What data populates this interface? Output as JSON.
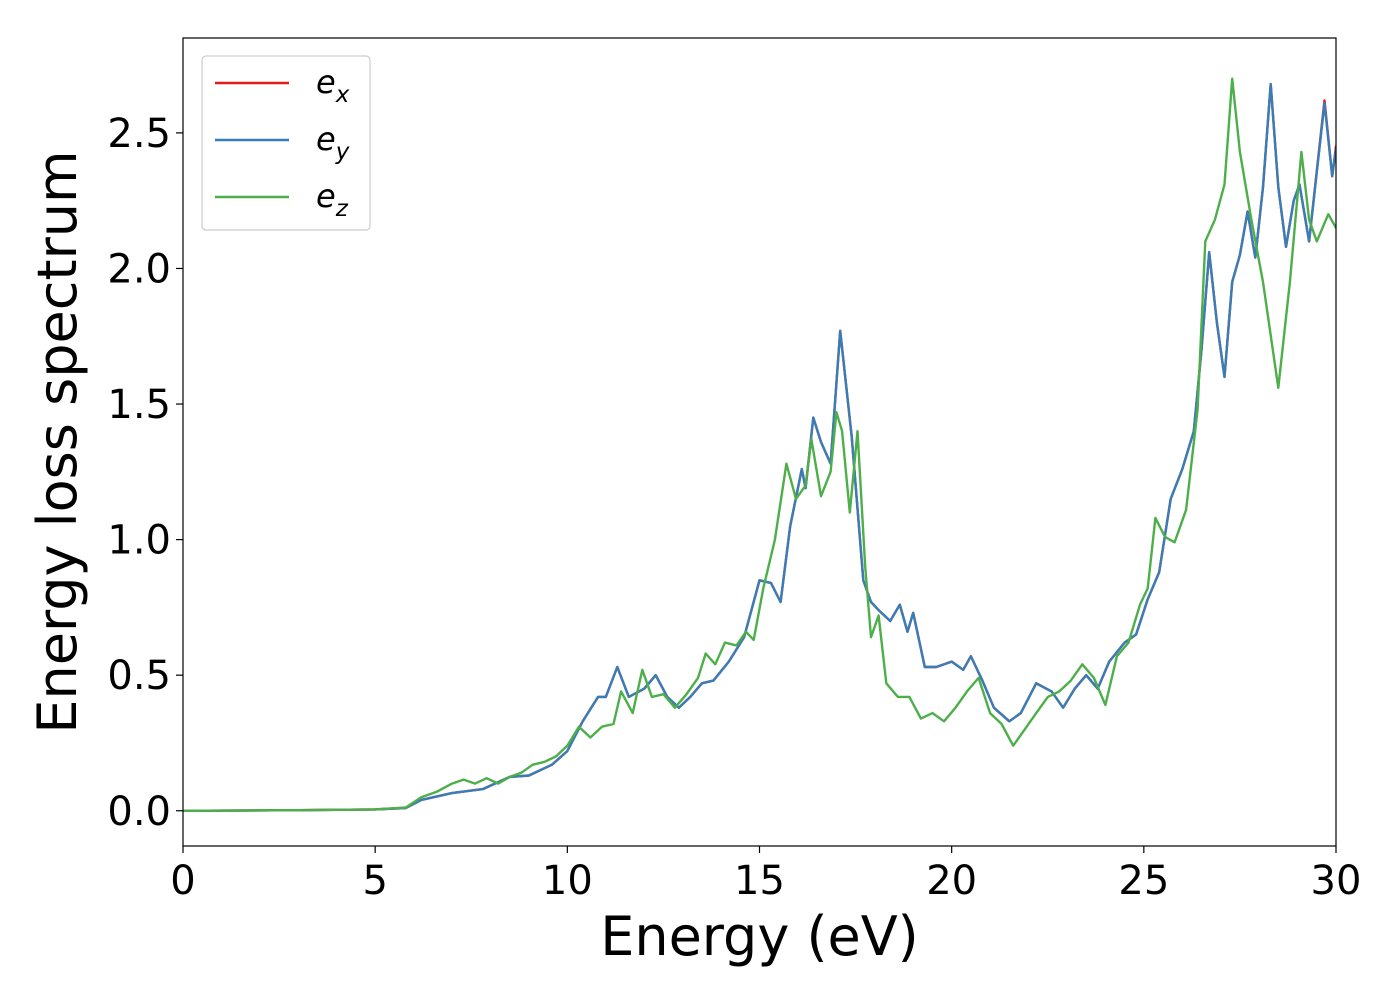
{
  "chart_data": {
    "type": "line",
    "title": "",
    "xlabel": "Energy (eV)",
    "ylabel": "Energy loss spectrum",
    "xlim": [
      0,
      30
    ],
    "ylim": [
      -0.13,
      2.85
    ],
    "xticks": [
      0,
      5,
      10,
      15,
      20,
      25,
      30
    ],
    "xtick_labels": [
      "0",
      "5",
      "10",
      "15",
      "20",
      "25",
      "30"
    ],
    "yticks": [
      0.0,
      0.5,
      1.0,
      1.5,
      2.0,
      2.5
    ],
    "ytick_labels": [
      "0.0",
      "0.5",
      "1.0",
      "1.5",
      "2.0",
      "2.5"
    ],
    "grid": false,
    "legend_position": "top-left",
    "series": [
      {
        "name": "e",
        "subscript": "x",
        "color": "#e41a1c",
        "points": [
          [
            0,
            0
          ],
          [
            3,
            0.002
          ],
          [
            5,
            0.005
          ],
          [
            5.8,
            0.01
          ],
          [
            6.2,
            0.04
          ],
          [
            7,
            0.065
          ],
          [
            7.8,
            0.08
          ],
          [
            8.5,
            0.125
          ],
          [
            9,
            0.13
          ],
          [
            9.6,
            0.17
          ],
          [
            10,
            0.22
          ],
          [
            10.4,
            0.33
          ],
          [
            10.8,
            0.42
          ],
          [
            11,
            0.42
          ],
          [
            11.3,
            0.53
          ],
          [
            11.6,
            0.42
          ],
          [
            12,
            0.45
          ],
          [
            12.3,
            0.5
          ],
          [
            12.6,
            0.42
          ],
          [
            12.9,
            0.38
          ],
          [
            13.2,
            0.42
          ],
          [
            13.5,
            0.47
          ],
          [
            13.8,
            0.48
          ],
          [
            14.2,
            0.55
          ],
          [
            14.6,
            0.64
          ],
          [
            15,
            0.85
          ],
          [
            15.3,
            0.84
          ],
          [
            15.55,
            0.77
          ],
          [
            15.8,
            1.05
          ],
          [
            16.1,
            1.26
          ],
          [
            16.2,
            1.19
          ],
          [
            16.4,
            1.45
          ],
          [
            16.6,
            1.36
          ],
          [
            16.85,
            1.28
          ],
          [
            17.1,
            1.77
          ],
          [
            17.4,
            1.38
          ],
          [
            17.7,
            0.85
          ],
          [
            17.9,
            0.77
          ],
          [
            18.1,
            0.74
          ],
          [
            18.4,
            0.7
          ],
          [
            18.65,
            0.76
          ],
          [
            18.85,
            0.66
          ],
          [
            19,
            0.73
          ],
          [
            19.3,
            0.53
          ],
          [
            19.6,
            0.53
          ],
          [
            20,
            0.55
          ],
          [
            20.3,
            0.52
          ],
          [
            20.5,
            0.57
          ],
          [
            20.8,
            0.48
          ],
          [
            21.1,
            0.38
          ],
          [
            21.5,
            0.33
          ],
          [
            21.8,
            0.36
          ],
          [
            22.2,
            0.47
          ],
          [
            22.6,
            0.44
          ],
          [
            22.9,
            0.38
          ],
          [
            23.2,
            0.45
          ],
          [
            23.5,
            0.5
          ],
          [
            23.8,
            0.45
          ],
          [
            24.1,
            0.55
          ],
          [
            24.5,
            0.62
          ],
          [
            24.8,
            0.65
          ],
          [
            25.1,
            0.78
          ],
          [
            25.4,
            0.88
          ],
          [
            25.7,
            1.15
          ],
          [
            26,
            1.26
          ],
          [
            26.3,
            1.4
          ],
          [
            26.5,
            1.7
          ],
          [
            26.7,
            2.06
          ],
          [
            26.9,
            1.8
          ],
          [
            27.1,
            1.6
          ],
          [
            27.3,
            1.95
          ],
          [
            27.5,
            2.05
          ],
          [
            27.7,
            2.21
          ],
          [
            27.9,
            2.04
          ],
          [
            28.1,
            2.3
          ],
          [
            28.3,
            2.68
          ],
          [
            28.5,
            2.3
          ],
          [
            28.7,
            2.08
          ],
          [
            28.9,
            2.25
          ],
          [
            29.05,
            2.31
          ],
          [
            29.3,
            2.1
          ],
          [
            29.7,
            2.62
          ],
          [
            29.9,
            2.34
          ],
          [
            30,
            2.45
          ]
        ]
      },
      {
        "name": "e",
        "subscript": "y",
        "color": "#377eb8",
        "points": [
          [
            0,
            0
          ],
          [
            3,
            0.002
          ],
          [
            5,
            0.005
          ],
          [
            5.8,
            0.01
          ],
          [
            6.2,
            0.04
          ],
          [
            7,
            0.065
          ],
          [
            7.8,
            0.08
          ],
          [
            8.5,
            0.125
          ],
          [
            9,
            0.13
          ],
          [
            9.6,
            0.17
          ],
          [
            10,
            0.22
          ],
          [
            10.4,
            0.33
          ],
          [
            10.8,
            0.42
          ],
          [
            11,
            0.42
          ],
          [
            11.3,
            0.53
          ],
          [
            11.6,
            0.42
          ],
          [
            12,
            0.45
          ],
          [
            12.3,
            0.5
          ],
          [
            12.6,
            0.42
          ],
          [
            12.9,
            0.38
          ],
          [
            13.2,
            0.42
          ],
          [
            13.5,
            0.47
          ],
          [
            13.8,
            0.48
          ],
          [
            14.2,
            0.55
          ],
          [
            14.6,
            0.64
          ],
          [
            15,
            0.85
          ],
          [
            15.3,
            0.84
          ],
          [
            15.55,
            0.77
          ],
          [
            15.8,
            1.05
          ],
          [
            16.1,
            1.26
          ],
          [
            16.2,
            1.19
          ],
          [
            16.4,
            1.45
          ],
          [
            16.6,
            1.36
          ],
          [
            16.85,
            1.28
          ],
          [
            17.1,
            1.77
          ],
          [
            17.4,
            1.38
          ],
          [
            17.7,
            0.85
          ],
          [
            17.9,
            0.77
          ],
          [
            18.1,
            0.74
          ],
          [
            18.4,
            0.7
          ],
          [
            18.65,
            0.76
          ],
          [
            18.85,
            0.66
          ],
          [
            19,
            0.73
          ],
          [
            19.3,
            0.53
          ],
          [
            19.6,
            0.53
          ],
          [
            20,
            0.55
          ],
          [
            20.3,
            0.52
          ],
          [
            20.5,
            0.57
          ],
          [
            20.8,
            0.48
          ],
          [
            21.1,
            0.38
          ],
          [
            21.5,
            0.33
          ],
          [
            21.8,
            0.36
          ],
          [
            22.2,
            0.47
          ],
          [
            22.6,
            0.44
          ],
          [
            22.9,
            0.38
          ],
          [
            23.2,
            0.45
          ],
          [
            23.5,
            0.5
          ],
          [
            23.8,
            0.45
          ],
          [
            24.1,
            0.55
          ],
          [
            24.5,
            0.62
          ],
          [
            24.8,
            0.65
          ],
          [
            25.1,
            0.78
          ],
          [
            25.4,
            0.88
          ],
          [
            25.7,
            1.15
          ],
          [
            26,
            1.26
          ],
          [
            26.3,
            1.4
          ],
          [
            26.5,
            1.7
          ],
          [
            26.7,
            2.06
          ],
          [
            26.9,
            1.8
          ],
          [
            27.1,
            1.6
          ],
          [
            27.3,
            1.95
          ],
          [
            27.5,
            2.05
          ],
          [
            27.7,
            2.21
          ],
          [
            27.9,
            2.04
          ],
          [
            28.1,
            2.3
          ],
          [
            28.3,
            2.68
          ],
          [
            28.5,
            2.3
          ],
          [
            28.7,
            2.08
          ],
          [
            28.9,
            2.25
          ],
          [
            29.05,
            2.31
          ],
          [
            29.3,
            2.1
          ],
          [
            29.7,
            2.61
          ],
          [
            29.9,
            2.34
          ],
          [
            30,
            2.44
          ]
        ]
      },
      {
        "name": "e",
        "subscript": "z",
        "color": "#4daf4a",
        "points": [
          [
            0,
            0
          ],
          [
            3,
            0.002
          ],
          [
            5,
            0.005
          ],
          [
            5.8,
            0.012
          ],
          [
            6.2,
            0.05
          ],
          [
            6.6,
            0.07
          ],
          [
            7,
            0.1
          ],
          [
            7.3,
            0.115
          ],
          [
            7.6,
            0.1
          ],
          [
            7.9,
            0.12
          ],
          [
            8.2,
            0.1
          ],
          [
            8.5,
            0.125
          ],
          [
            8.8,
            0.14
          ],
          [
            9.1,
            0.17
          ],
          [
            9.4,
            0.18
          ],
          [
            9.7,
            0.2
          ],
          [
            10,
            0.24
          ],
          [
            10.3,
            0.31
          ],
          [
            10.6,
            0.27
          ],
          [
            10.9,
            0.31
          ],
          [
            11.2,
            0.32
          ],
          [
            11.4,
            0.44
          ],
          [
            11.7,
            0.36
          ],
          [
            11.95,
            0.52
          ],
          [
            12.2,
            0.42
          ],
          [
            12.5,
            0.43
          ],
          [
            12.8,
            0.38
          ],
          [
            13.1,
            0.43
          ],
          [
            13.4,
            0.49
          ],
          [
            13.6,
            0.58
          ],
          [
            13.85,
            0.54
          ],
          [
            14.1,
            0.62
          ],
          [
            14.4,
            0.61
          ],
          [
            14.65,
            0.66
          ],
          [
            14.85,
            0.63
          ],
          [
            15.1,
            0.82
          ],
          [
            15.4,
            1.0
          ],
          [
            15.7,
            1.28
          ],
          [
            15.95,
            1.15
          ],
          [
            16.2,
            1.2
          ],
          [
            16.35,
            1.37
          ],
          [
            16.6,
            1.16
          ],
          [
            16.85,
            1.25
          ],
          [
            17,
            1.47
          ],
          [
            17.15,
            1.4
          ],
          [
            17.35,
            1.1
          ],
          [
            17.55,
            1.4
          ],
          [
            17.75,
            0.9
          ],
          [
            17.9,
            0.64
          ],
          [
            18.1,
            0.72
          ],
          [
            18.3,
            0.47
          ],
          [
            18.6,
            0.42
          ],
          [
            18.9,
            0.42
          ],
          [
            19.2,
            0.34
          ],
          [
            19.5,
            0.36
          ],
          [
            19.8,
            0.33
          ],
          [
            20.1,
            0.38
          ],
          [
            20.4,
            0.44
          ],
          [
            20.7,
            0.49
          ],
          [
            21,
            0.36
          ],
          [
            21.3,
            0.32
          ],
          [
            21.6,
            0.24
          ],
          [
            21.9,
            0.3
          ],
          [
            22.2,
            0.36
          ],
          [
            22.5,
            0.42
          ],
          [
            22.8,
            0.44
          ],
          [
            23.1,
            0.48
          ],
          [
            23.4,
            0.54
          ],
          [
            23.7,
            0.49
          ],
          [
            24,
            0.39
          ],
          [
            24.3,
            0.57
          ],
          [
            24.6,
            0.62
          ],
          [
            24.9,
            0.76
          ],
          [
            25.1,
            0.82
          ],
          [
            25.3,
            1.08
          ],
          [
            25.55,
            1.01
          ],
          [
            25.8,
            0.99
          ],
          [
            26.1,
            1.11
          ],
          [
            26.4,
            1.48
          ],
          [
            26.6,
            2.1
          ],
          [
            26.85,
            2.18
          ],
          [
            27.1,
            2.31
          ],
          [
            27.3,
            2.7
          ],
          [
            27.5,
            2.43
          ],
          [
            27.8,
            2.18
          ],
          [
            28.1,
            1.95
          ],
          [
            28.5,
            1.56
          ],
          [
            28.8,
            1.95
          ],
          [
            29.1,
            2.43
          ],
          [
            29.3,
            2.18
          ],
          [
            29.5,
            2.1
          ],
          [
            29.8,
            2.2
          ],
          [
            30,
            2.15
          ]
        ]
      }
    ]
  }
}
